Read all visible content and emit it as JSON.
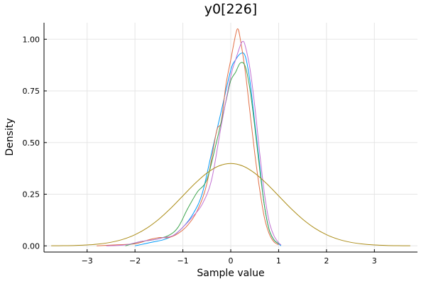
{
  "chart_data": {
    "type": "line",
    "title": "y0[226]",
    "xlabel": "Sample value",
    "ylabel": "Density",
    "xlim": [
      -3.9,
      3.9
    ],
    "ylim": [
      -0.03,
      1.08
    ],
    "x_ticks": [
      -3,
      -2,
      -1,
      0,
      1,
      2,
      3
    ],
    "x_tick_labels": [
      "−3",
      "−2",
      "−1",
      "0",
      "1",
      "2",
      "3"
    ],
    "y_ticks": [
      0,
      0.25,
      0.5,
      0.75,
      1.0
    ],
    "y_tick_labels": [
      "0.00",
      "0.25",
      "0.50",
      "0.75",
      "1.00"
    ],
    "grid": true,
    "legend": "none",
    "series": [
      {
        "color": "#009af9",
        "x": [
          -2.0,
          -1.8,
          -1.6,
          -1.4,
          -1.2,
          -1.0,
          -0.8,
          -0.6,
          -0.4,
          -0.2,
          0.0,
          0.1,
          0.2,
          0.3,
          0.4,
          0.5,
          0.6,
          0.7,
          0.8,
          0.9,
          1.0,
          1.05
        ],
        "y": [
          0.0,
          0.01,
          0.02,
          0.03,
          0.05,
          0.09,
          0.15,
          0.25,
          0.45,
          0.65,
          0.85,
          0.9,
          0.93,
          0.92,
          0.8,
          0.6,
          0.4,
          0.2,
          0.08,
          0.03,
          0.01,
          0.0
        ]
      },
      {
        "color": "#e26f46",
        "x": [
          -2.8,
          -2.4,
          -2.0,
          -1.7,
          -1.5,
          -1.3,
          -1.1,
          -0.9,
          -0.7,
          -0.5,
          -0.3,
          -0.2,
          -0.1,
          0.0,
          0.1,
          0.15,
          0.2,
          0.3,
          0.4,
          0.5,
          0.6,
          0.7,
          0.8,
          0.9,
          1.0
        ],
        "y": [
          0.0,
          0.005,
          0.01,
          0.03,
          0.04,
          0.04,
          0.06,
          0.1,
          0.17,
          0.3,
          0.55,
          0.6,
          0.78,
          0.9,
          1.02,
          1.05,
          1.0,
          0.85,
          0.65,
          0.45,
          0.28,
          0.14,
          0.06,
          0.02,
          0.005
        ]
      },
      {
        "color": "#3da44d",
        "x": [
          -2.2,
          -1.9,
          -1.6,
          -1.3,
          -1.1,
          -0.9,
          -0.7,
          -0.5,
          -0.3,
          -0.1,
          0.0,
          0.1,
          0.2,
          0.3,
          0.4,
          0.5,
          0.6,
          0.7,
          0.8,
          0.9,
          1.0
        ],
        "y": [
          0.0,
          0.02,
          0.03,
          0.05,
          0.09,
          0.18,
          0.26,
          0.32,
          0.5,
          0.7,
          0.8,
          0.84,
          0.885,
          0.87,
          0.76,
          0.58,
          0.38,
          0.2,
          0.08,
          0.03,
          0.01
        ]
      },
      {
        "color": "#c271d2",
        "x": [
          -2.6,
          -2.2,
          -1.9,
          -1.6,
          -1.4,
          -1.2,
          -1.0,
          -0.8,
          -0.6,
          -0.4,
          -0.2,
          0.0,
          0.1,
          0.2,
          0.25,
          0.3,
          0.4,
          0.5,
          0.6,
          0.7,
          0.8,
          0.9,
          1.0,
          1.05
        ],
        "y": [
          0.0,
          0.005,
          0.02,
          0.03,
          0.04,
          0.05,
          0.09,
          0.14,
          0.2,
          0.32,
          0.58,
          0.82,
          0.9,
          0.97,
          0.99,
          0.97,
          0.86,
          0.68,
          0.46,
          0.26,
          0.12,
          0.05,
          0.015,
          0.005
        ]
      },
      {
        "color": "#ac8d18",
        "x": [
          -3.75,
          -3.5,
          -3.25,
          -3.0,
          -2.75,
          -2.5,
          -2.25,
          -2.0,
          -1.75,
          -1.5,
          -1.25,
          -1.0,
          -0.75,
          -0.5,
          -0.25,
          0.0,
          0.25,
          0.5,
          0.75,
          1.0,
          1.25,
          1.5,
          1.75,
          2.0,
          2.25,
          2.5,
          2.75,
          3.0,
          3.25,
          3.5,
          3.75
        ],
        "y": [
          0.0004,
          0.0009,
          0.002,
          0.0044,
          0.0091,
          0.0175,
          0.0317,
          0.054,
          0.0863,
          0.1295,
          0.1826,
          0.242,
          0.3011,
          0.3521,
          0.3867,
          0.3989,
          0.3867,
          0.3521,
          0.3011,
          0.242,
          0.1826,
          0.1295,
          0.0863,
          0.054,
          0.0317,
          0.0175,
          0.0091,
          0.0044,
          0.002,
          0.0009,
          0.0004
        ]
      }
    ]
  }
}
